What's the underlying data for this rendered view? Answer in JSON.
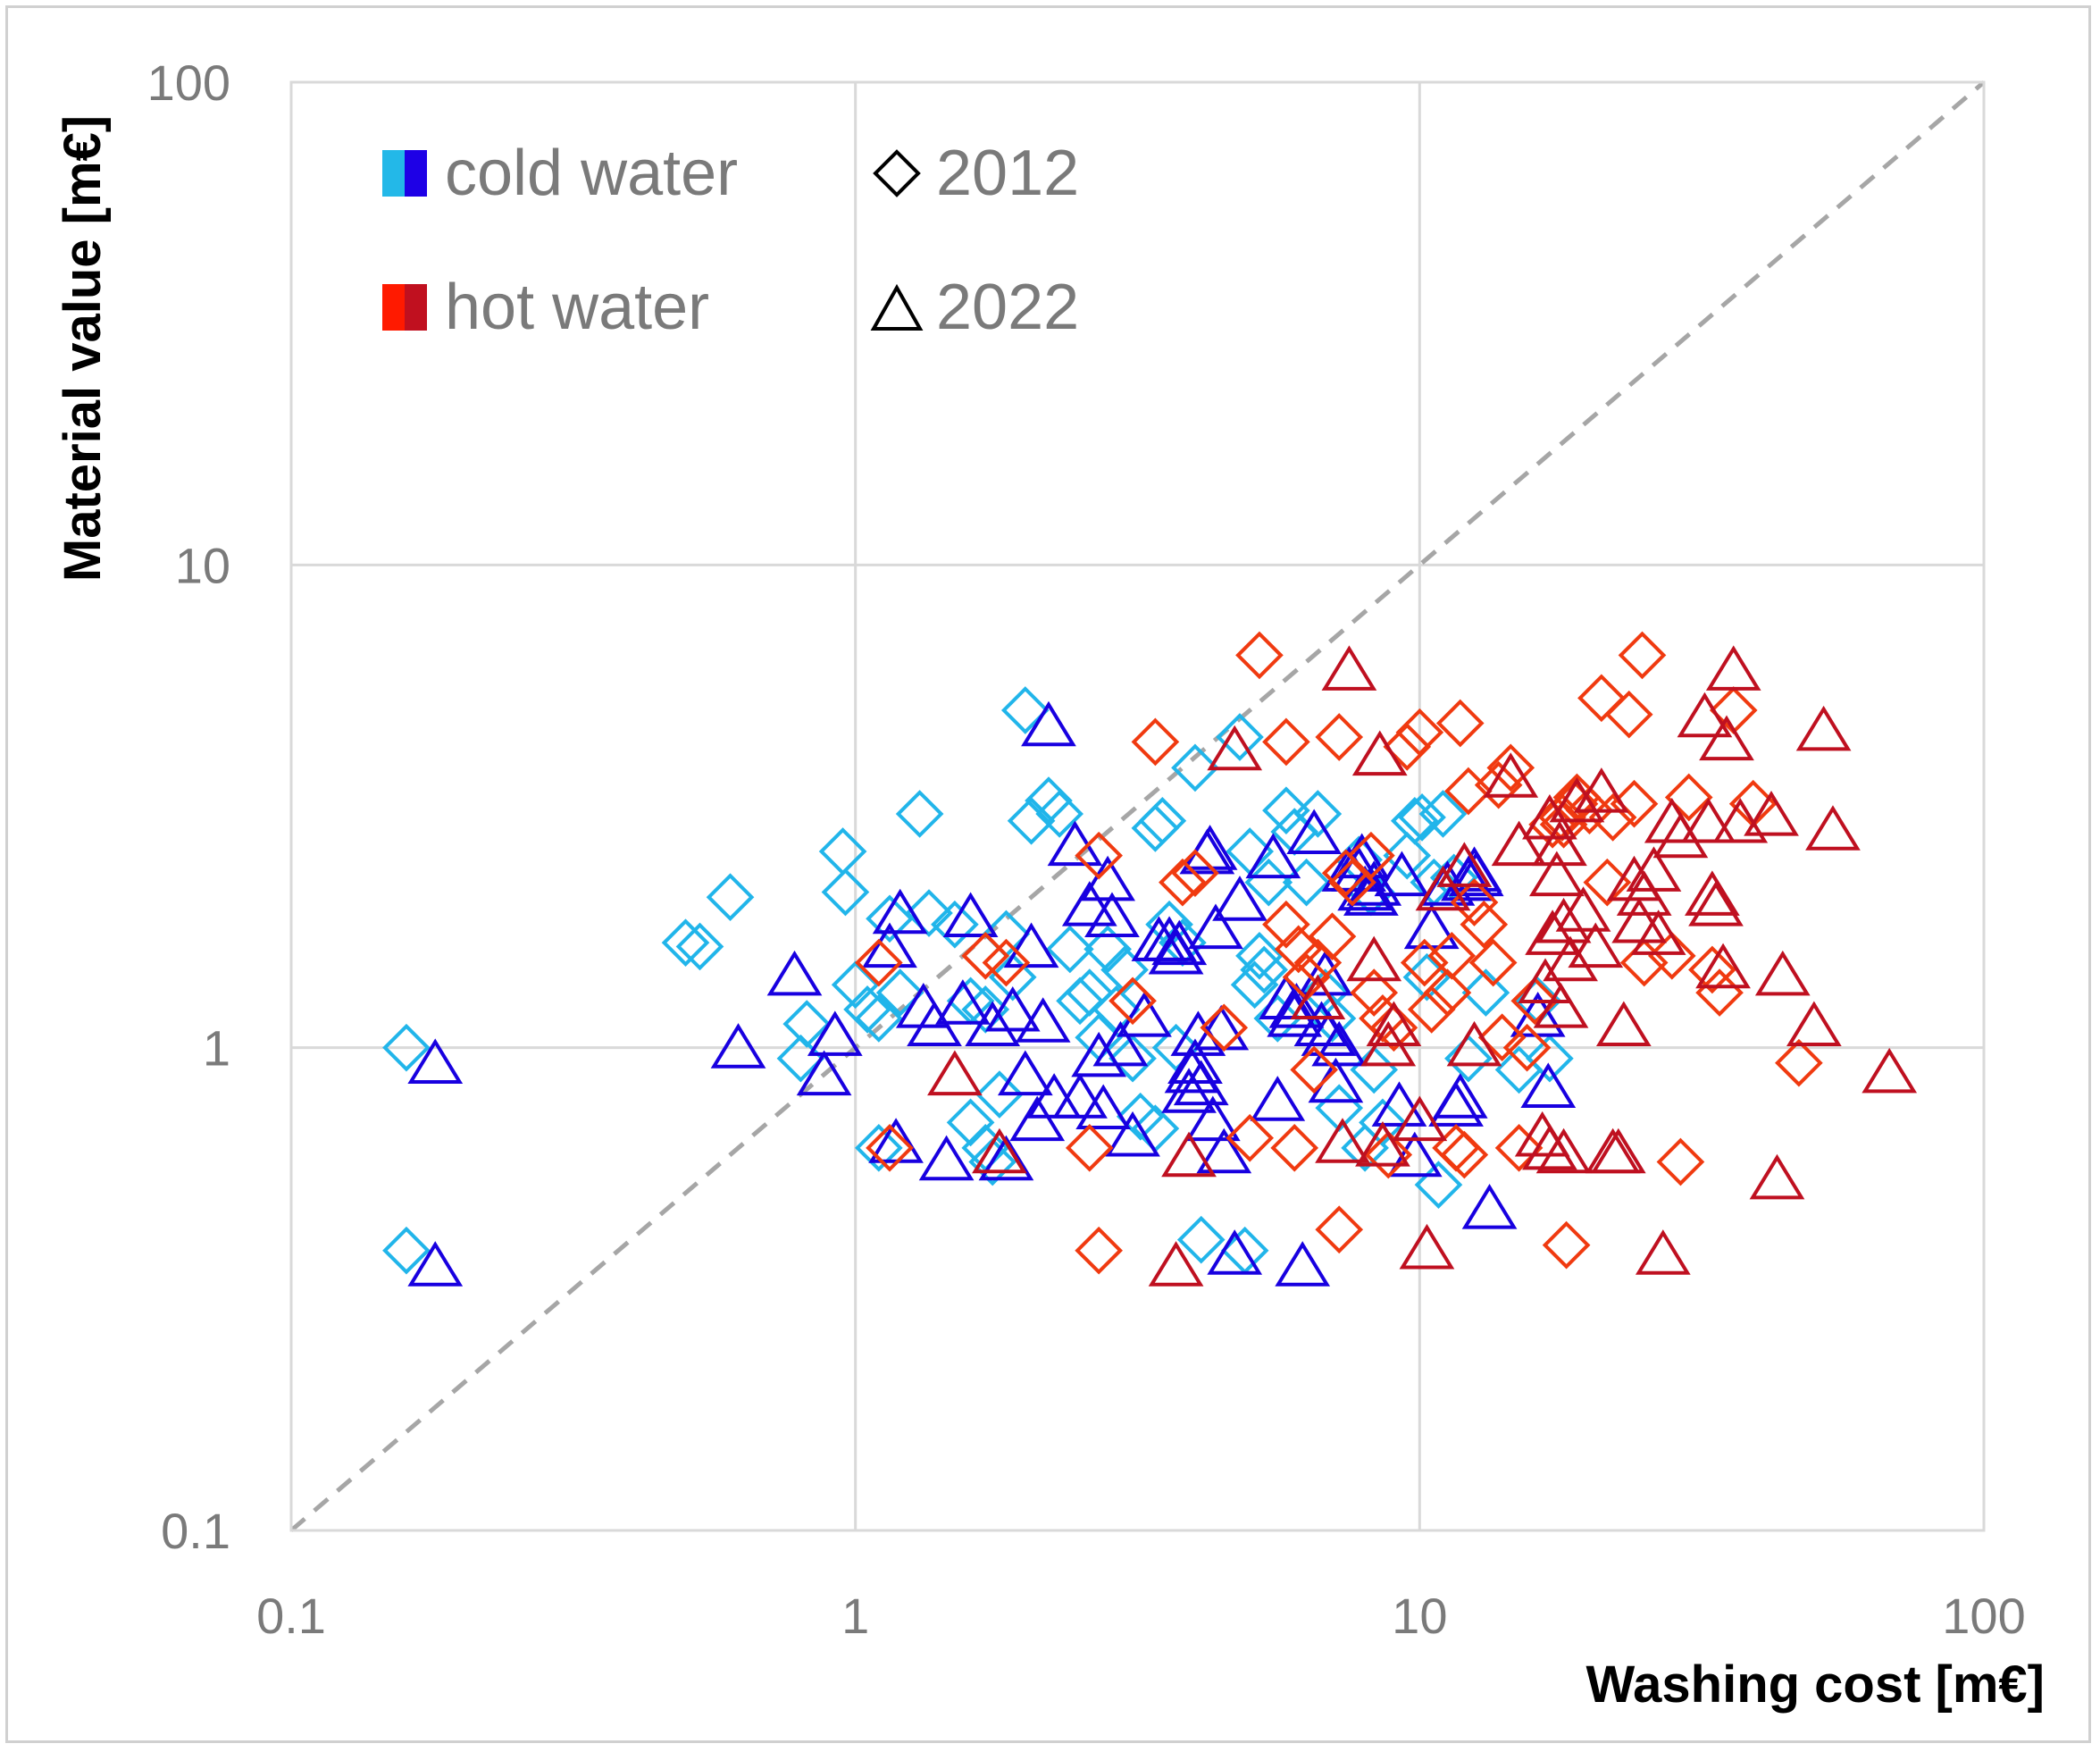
{
  "chart_data": {
    "type": "scatter",
    "title": "",
    "xlabel": "Washing cost [m€]",
    "ylabel": "Material value [m€]",
    "xscale": "log",
    "yscale": "log",
    "xlim": [
      0.1,
      100
    ],
    "ylim": [
      0.1,
      100
    ],
    "xticks": [
      "0.1",
      "1",
      "10",
      "100"
    ],
    "yticks": [
      "0.1",
      "1",
      "10",
      "100"
    ],
    "grid": true,
    "reference_line": {
      "label": "y = x",
      "style": "dashed",
      "color": "#a6a6a6"
    },
    "legend": {
      "placement": "top-left",
      "color_entries": [
        {
          "label": "cold water",
          "colors": [
            "#23b8e8",
            "#1e00e6"
          ]
        },
        {
          "label": "hot water",
          "colors": [
            "#ff1a00",
            "#c0101f"
          ]
        }
      ],
      "marker_entries": [
        {
          "label": "2012",
          "marker": "diamond"
        },
        {
          "label": "2022",
          "marker": "triangle"
        }
      ]
    },
    "series": [
      {
        "name": "cold water 2012",
        "marker": "diamond",
        "color": "#21b5ea",
        "points": [
          [
            0.16,
            1.0
          ],
          [
            0.16,
            0.38
          ],
          [
            0.5,
            1.65
          ],
          [
            0.53,
            1.62
          ],
          [
            0.6,
            2.05
          ],
          [
            0.8,
            0.95
          ],
          [
            0.82,
            1.12
          ],
          [
            0.95,
            2.55
          ],
          [
            0.96,
            2.1
          ],
          [
            1.0,
            1.35
          ],
          [
            1.05,
            1.2
          ],
          [
            1.1,
            1.15
          ],
          [
            1.1,
            0.62
          ],
          [
            1.15,
            1.85
          ],
          [
            1.2,
            1.3
          ],
          [
            1.3,
            3.05
          ],
          [
            1.35,
            1.9
          ],
          [
            1.5,
            1.8
          ],
          [
            1.6,
            1.25
          ],
          [
            1.7,
            1.2
          ],
          [
            1.6,
            0.7
          ],
          [
            1.7,
            0.62
          ],
          [
            1.75,
            0.58
          ],
          [
            1.8,
            0.8
          ],
          [
            1.85,
            1.72
          ],
          [
            1.9,
            1.4
          ],
          [
            2.0,
            5.0
          ],
          [
            2.05,
            2.95
          ],
          [
            2.2,
            3.25
          ],
          [
            2.3,
            3.05
          ],
          [
            2.4,
            1.6
          ],
          [
            2.5,
            1.25
          ],
          [
            2.6,
            1.3
          ],
          [
            2.7,
            1.05
          ],
          [
            2.8,
            1.6
          ],
          [
            2.9,
            1.2
          ],
          [
            3.0,
            1.45
          ],
          [
            3.1,
            0.95
          ],
          [
            3.2,
            0.72
          ],
          [
            3.4,
            2.85
          ],
          [
            3.5,
            2.95
          ],
          [
            3.6,
            1.8
          ],
          [
            3.4,
            0.68
          ],
          [
            3.7,
            1.0
          ],
          [
            3.8,
            1.65
          ],
          [
            4.0,
            3.8
          ],
          [
            4.1,
            0.4
          ],
          [
            4.8,
            4.4
          ],
          [
            4.9,
            0.38
          ],
          [
            5.0,
            2.55
          ],
          [
            5.1,
            1.35
          ],
          [
            5.2,
            1.55
          ],
          [
            5.3,
            1.45
          ],
          [
            5.4,
            2.2
          ],
          [
            5.6,
            1.15
          ],
          [
            5.8,
            3.1
          ],
          [
            6.0,
            2.8
          ],
          [
            6.3,
            2.2
          ],
          [
            6.6,
            3.05
          ],
          [
            6.8,
            1.3
          ],
          [
            7.0,
            1.15
          ],
          [
            7.2,
            0.75
          ],
          [
            7.8,
            2.45
          ],
          [
            8.0,
            0.62
          ],
          [
            8.2,
            2.1
          ],
          [
            8.3,
            0.9
          ],
          [
            8.6,
            0.7
          ],
          [
            9.5,
            2.5
          ],
          [
            9.8,
            2.95
          ],
          [
            10.1,
            3.0
          ],
          [
            10.3,
            1.4
          ],
          [
            10.6,
            2.2
          ],
          [
            10.8,
            0.52
          ],
          [
            11.0,
            3.05
          ],
          [
            11.5,
            2.25
          ],
          [
            12.2,
            0.95
          ],
          [
            13.1,
            1.3
          ],
          [
            15.0,
            0.9
          ],
          [
            16.2,
            1.25
          ],
          [
            17.0,
            0.95
          ]
        ]
      },
      {
        "name": "cold water 2022",
        "marker": "triangle",
        "color": "#1800e0",
        "points": [
          [
            0.18,
            0.92
          ],
          [
            0.18,
            0.35
          ],
          [
            0.62,
            0.99
          ],
          [
            0.78,
            1.4
          ],
          [
            0.88,
            0.87
          ],
          [
            0.92,
            1.05
          ],
          [
            1.18,
            0.63
          ],
          [
            1.2,
            1.88
          ],
          [
            1.15,
            1.6
          ],
          [
            1.32,
            1.2
          ],
          [
            1.38,
            1.1
          ],
          [
            1.45,
            0.58
          ],
          [
            1.55,
            1.22
          ],
          [
            1.6,
            1.85
          ],
          [
            1.75,
            1.1
          ],
          [
            1.85,
            0.58
          ],
          [
            1.9,
            1.18
          ],
          [
            2.0,
            0.87
          ],
          [
            2.05,
            1.6
          ],
          [
            2.1,
            0.7
          ],
          [
            2.15,
            1.12
          ],
          [
            2.2,
            4.6
          ],
          [
            2.25,
            0.78
          ],
          [
            2.45,
            2.6
          ],
          [
            2.5,
            0.78
          ],
          [
            2.6,
            1.95
          ],
          [
            2.7,
            0.95
          ],
          [
            2.75,
            0.74
          ],
          [
            2.8,
            2.2
          ],
          [
            2.85,
            1.85
          ],
          [
            2.95,
            1.0
          ],
          [
            3.1,
            0.65
          ],
          [
            3.25,
            1.15
          ],
          [
            3.45,
            1.65
          ],
          [
            3.6,
            1.65
          ],
          [
            3.7,
            1.55
          ],
          [
            3.75,
            1.62
          ],
          [
            3.9,
            0.8
          ],
          [
            3.95,
            0.88
          ],
          [
            4.0,
            0.92
          ],
          [
            4.05,
            1.05
          ],
          [
            4.1,
            0.83
          ],
          [
            4.2,
            2.5
          ],
          [
            4.25,
            2.55
          ],
          [
            4.3,
            0.7
          ],
          [
            4.35,
            1.75
          ],
          [
            4.45,
            1.08
          ],
          [
            4.5,
            0.6
          ],
          [
            4.7,
            0.37
          ],
          [
            4.8,
            2.0
          ],
          [
            5.5,
            2.45
          ],
          [
            5.6,
            0.77
          ],
          [
            5.8,
            1.25
          ],
          [
            6.0,
            1.15
          ],
          [
            6.05,
            1.2
          ],
          [
            6.2,
            0.35
          ],
          [
            6.5,
            2.75
          ],
          [
            6.7,
            1.1
          ],
          [
            6.8,
            1.4
          ],
          [
            6.9,
            1.05
          ],
          [
            7.1,
            0.84
          ],
          [
            7.2,
            1.0
          ],
          [
            7.5,
            2.3
          ],
          [
            7.8,
            2.3
          ],
          [
            7.9,
            2.45
          ],
          [
            8.0,
            2.1
          ],
          [
            8.2,
            2.05
          ],
          [
            8.3,
            2.15
          ],
          [
            9.2,
            0.75
          ],
          [
            9.3,
            2.25
          ],
          [
            9.8,
            0.59
          ],
          [
            10.5,
            1.75
          ],
          [
            11.2,
            2.15
          ],
          [
            11.6,
            0.75
          ],
          [
            11.8,
            0.78
          ],
          [
            12.2,
            2.2
          ],
          [
            12.6,
            2.25
          ],
          [
            12.5,
            2.3
          ],
          [
            13.3,
            0.46
          ],
          [
            16.2,
            1.15
          ],
          [
            16.9,
            0.82
          ]
        ]
      },
      {
        "name": "hot water 2012",
        "marker": "diamond",
        "color": "#f03a10",
        "points": [
          [
            1.1,
            1.5
          ],
          [
            1.15,
            0.62
          ],
          [
            1.7,
            1.55
          ],
          [
            1.85,
            1.5
          ],
          [
            2.6,
            0.62
          ],
          [
            2.7,
            0.38
          ],
          [
            2.7,
            2.5
          ],
          [
            3.1,
            1.25
          ],
          [
            3.4,
            4.3
          ],
          [
            3.8,
            2.2
          ],
          [
            4.0,
            2.3
          ],
          [
            4.5,
            1.1
          ],
          [
            5.0,
            0.65
          ],
          [
            5.2,
            6.5
          ],
          [
            5.8,
            4.3
          ],
          [
            5.8,
            1.8
          ],
          [
            6.0,
            0.62
          ],
          [
            6.1,
            1.6
          ],
          [
            6.3,
            1.4
          ],
          [
            6.5,
            0.9
          ],
          [
            6.6,
            1.5
          ],
          [
            7.0,
            1.7
          ],
          [
            7.2,
            0.42
          ],
          [
            7.2,
            4.4
          ],
          [
            7.4,
            2.3
          ],
          [
            7.6,
            2.2
          ],
          [
            8.2,
            2.5
          ],
          [
            8.3,
            1.3
          ],
          [
            8.6,
            1.15
          ],
          [
            8.8,
            0.6
          ],
          [
            9.0,
            1.1
          ],
          [
            9.5,
            4.2
          ],
          [
            10.0,
            4.5
          ],
          [
            10.2,
            1.5
          ],
          [
            10.5,
            1.2
          ],
          [
            11.2,
            1.3
          ],
          [
            11.4,
            1.55
          ],
          [
            11.6,
            0.62
          ],
          [
            11.8,
            4.7
          ],
          [
            12.0,
            0.6
          ],
          [
            12.2,
            3.4
          ],
          [
            12.5,
            2.0
          ],
          [
            13.0,
            1.8
          ],
          [
            13.5,
            1.5
          ],
          [
            13.8,
            3.5
          ],
          [
            14.0,
            1.05
          ],
          [
            14.5,
            3.8
          ],
          [
            15.0,
            0.62
          ],
          [
            15.5,
            1.0
          ],
          [
            16.0,
            1.25
          ],
          [
            17.2,
            2.9
          ],
          [
            17.9,
            3.0
          ],
          [
            18.0,
            2.9
          ],
          [
            18.2,
            0.39
          ],
          [
            18.8,
            3.2
          ],
          [
            19.0,
            3.3
          ],
          [
            20.0,
            3.1
          ],
          [
            21.0,
            5.3
          ],
          [
            21.5,
            2.2
          ],
          [
            22.0,
            3.0
          ],
          [
            23.5,
            4.9
          ],
          [
            24.0,
            3.2
          ],
          [
            24.8,
            6.5
          ],
          [
            25.0,
            1.5
          ],
          [
            28.0,
            1.55
          ],
          [
            29.0,
            0.58
          ],
          [
            30.0,
            3.3
          ],
          [
            33.0,
            1.45
          ],
          [
            34.0,
            1.3
          ],
          [
            36.0,
            5.0
          ],
          [
            39.0,
            3.2
          ],
          [
            47.0,
            0.93
          ]
        ]
      },
      {
        "name": "hot water 2022",
        "marker": "triangle",
        "color": "#bf1020",
        "points": [
          [
            1.5,
            0.87
          ],
          [
            1.8,
            0.6
          ],
          [
            3.7,
            0.35
          ],
          [
            3.9,
            0.59
          ],
          [
            4.7,
            4.1
          ],
          [
            6.6,
            1.25
          ],
          [
            7.3,
            0.63
          ],
          [
            7.5,
            6.0
          ],
          [
            8.3,
            1.5
          ],
          [
            8.5,
            4.0
          ],
          [
            8.6,
            0.62
          ],
          [
            8.8,
            1.0
          ],
          [
            9.0,
            1.1
          ],
          [
            10.0,
            0.7
          ],
          [
            10.3,
            0.38
          ],
          [
            11.0,
            2.1
          ],
          [
            12.0,
            2.35
          ],
          [
            12.5,
            1.0
          ],
          [
            14.5,
            3.6
          ],
          [
            15.0,
            2.6
          ],
          [
            16.5,
            0.65
          ],
          [
            16.7,
            1.35
          ],
          [
            17.0,
            0.61
          ],
          [
            17.0,
            2.95
          ],
          [
            17.2,
            1.7
          ],
          [
            17.5,
            2.25
          ],
          [
            17.7,
            2.6
          ],
          [
            17.8,
            1.2
          ],
          [
            18.0,
            0.6
          ],
          [
            18.0,
            1.8
          ],
          [
            18.5,
            1.5
          ],
          [
            19.0,
            3.2
          ],
          [
            19.5,
            1.9
          ],
          [
            20.5,
            1.6
          ],
          [
            21.0,
            3.35
          ],
          [
            22.0,
            0.6
          ],
          [
            22.5,
            0.6
          ],
          [
            23.0,
            1.1
          ],
          [
            24.0,
            2.2
          ],
          [
            24.5,
            1.8
          ],
          [
            25.0,
            2.05
          ],
          [
            26.0,
            2.3
          ],
          [
            26.5,
            1.7
          ],
          [
            27.0,
            0.37
          ],
          [
            28.0,
            2.9
          ],
          [
            29.0,
            2.7
          ],
          [
            32.0,
            4.8
          ],
          [
            32.5,
            2.9
          ],
          [
            33.0,
            2.05
          ],
          [
            33.5,
            1.95
          ],
          [
            34.5,
            1.45
          ],
          [
            35.0,
            4.3
          ],
          [
            36.0,
            6.0
          ],
          [
            37.0,
            2.9
          ],
          [
            42.0,
            3.0
          ],
          [
            43.0,
            0.53
          ],
          [
            44.0,
            1.4
          ],
          [
            50.0,
            1.1
          ],
          [
            52.0,
            4.5
          ],
          [
            54.0,
            2.8
          ],
          [
            68.0,
            0.88
          ]
        ]
      }
    ]
  }
}
